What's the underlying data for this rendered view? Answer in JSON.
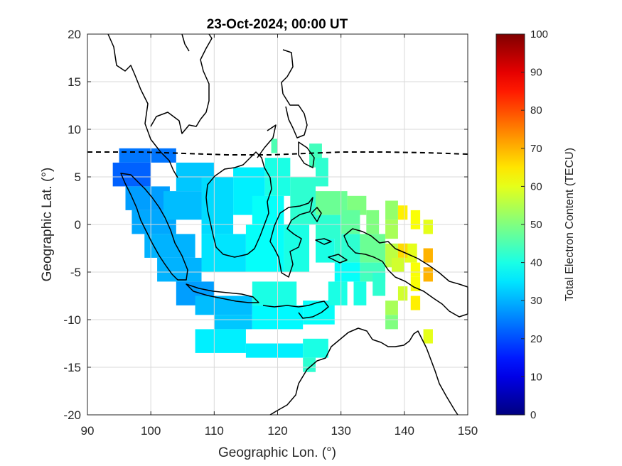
{
  "chart_data": {
    "type": "heatmap",
    "title": "23-Oct-2024; 00:00 UT",
    "xlabel": "Geographic Lon. (°)",
    "ylabel": "Geographic Lat. (°)",
    "xlim": [
      90,
      150
    ],
    "ylim": [
      -20,
      20
    ],
    "xticks": [
      90,
      100,
      110,
      120,
      130,
      140,
      150
    ],
    "yticks": [
      -20,
      -15,
      -10,
      -5,
      0,
      5,
      10,
      15,
      20
    ],
    "grid": true,
    "colorbar": {
      "label": "Total Electron Content (TECU)",
      "colormap": "jet",
      "range": [
        0,
        100
      ],
      "ticks": [
        0,
        10,
        20,
        30,
        40,
        50,
        60,
        70,
        80,
        90,
        100
      ]
    },
    "tec_cells": [
      {
        "lon_min": 95,
        "lon_max": 104,
        "lat_min": 6.5,
        "lat_max": 8.0,
        "tec": 24
      },
      {
        "lon_min": 94,
        "lon_max": 100,
        "lat_min": 4.0,
        "lat_max": 6.5,
        "tec": 22
      },
      {
        "lon_min": 96,
        "lon_max": 103,
        "lat_min": 1.5,
        "lat_max": 4.0,
        "tec": 28
      },
      {
        "lon_min": 97,
        "lon_max": 104,
        "lat_min": -1.0,
        "lat_max": 1.5,
        "tec": 29
      },
      {
        "lon_min": 99,
        "lon_max": 107,
        "lat_min": -3.5,
        "lat_max": -1.0,
        "tec": 30
      },
      {
        "lon_min": 101,
        "lon_max": 108,
        "lat_min": -6.0,
        "lat_max": -3.5,
        "tec": 30
      },
      {
        "lon_min": 104,
        "lon_max": 110,
        "lat_min": -8.5,
        "lat_max": -6.0,
        "tec": 28
      },
      {
        "lon_min": 107,
        "lon_max": 116,
        "lat_min": -9.5,
        "lat_max": -7.5,
        "tec": 31
      },
      {
        "lon_min": 104,
        "lon_max": 110,
        "lat_min": 3.5,
        "lat_max": 6.5,
        "tec": 32
      },
      {
        "lon_min": 102,
        "lon_max": 108,
        "lat_min": 0.5,
        "lat_max": 3.5,
        "tec": 31
      },
      {
        "lon_min": 108,
        "lon_max": 113,
        "lat_min": -1.0,
        "lat_max": 5.0,
        "tec": 34
      },
      {
        "lon_min": 113,
        "lon_max": 118,
        "lat_min": 1.0,
        "lat_max": 6.0,
        "tec": 36
      },
      {
        "lon_min": 118,
        "lon_max": 122,
        "lat_min": 3.0,
        "lat_max": 7.0,
        "tec": 40
      },
      {
        "lon_min": 108,
        "lon_max": 115,
        "lat_min": -5.0,
        "lat_max": -1.0,
        "tec": 35
      },
      {
        "lon_min": 115,
        "lon_max": 121,
        "lat_min": -5.0,
        "lat_max": 0.0,
        "tec": 38
      },
      {
        "lon_min": 116,
        "lon_max": 121,
        "lat_min": 0.0,
        "lat_max": 3.0,
        "tec": 38
      },
      {
        "lon_min": 121,
        "lon_max": 125,
        "lat_min": -5.0,
        "lat_max": 0.0,
        "tec": 40
      },
      {
        "lon_min": 122,
        "lon_max": 126,
        "lat_min": 0.0,
        "lat_max": 5.0,
        "tec": 42
      },
      {
        "lon_min": 119,
        "lon_max": 120,
        "lat_min": 7.5,
        "lat_max": 9.0,
        "tec": 45
      },
      {
        "lon_min": 125,
        "lon_max": 127,
        "lat_min": 6.0,
        "lat_max": 8.5,
        "tec": 44
      },
      {
        "lon_min": 126,
        "lon_max": 128,
        "lat_min": 4.0,
        "lat_max": 7.0,
        "tec": 42
      },
      {
        "lon_min": 116,
        "lon_max": 123,
        "lat_min": -8.5,
        "lat_max": -6.0,
        "tec": 40
      },
      {
        "lon_min": 110,
        "lon_max": 116,
        "lat_min": -11.0,
        "lat_max": -9.5,
        "tec": 32
      },
      {
        "lon_min": 116,
        "lon_max": 124,
        "lat_min": -11.0,
        "lat_max": -8.5,
        "tec": 37
      },
      {
        "lon_min": 124,
        "lon_max": 129,
        "lat_min": -10.5,
        "lat_max": -8.0,
        "tec": 38
      },
      {
        "lon_min": 107,
        "lon_max": 115,
        "lat_min": -13.5,
        "lat_max": -11.0,
        "tec": 36
      },
      {
        "lon_min": 115,
        "lon_max": 124,
        "lat_min": -14.0,
        "lat_max": -12.5,
        "tec": 36
      },
      {
        "lon_min": 124,
        "lon_max": 128,
        "lat_min": -14.0,
        "lat_max": -12.0,
        "tec": 40
      },
      {
        "lon_min": 124,
        "lon_max": 126,
        "lat_min": -15.5,
        "lat_max": -14.0,
        "tec": 42
      },
      {
        "lon_min": 126,
        "lon_max": 131,
        "lat_min": 1.0,
        "lat_max": 3.5,
        "tec": 48
      },
      {
        "lon_min": 131,
        "lon_max": 134,
        "lat_min": 1.0,
        "lat_max": 3.0,
        "tec": 50
      },
      {
        "lon_min": 126,
        "lon_max": 130,
        "lat_min": -1.5,
        "lat_max": 1.0,
        "tec": 42
      },
      {
        "lon_min": 130,
        "lon_max": 133,
        "lat_min": -1.0,
        "lat_max": 1.5,
        "tec": 47
      },
      {
        "lon_min": 126,
        "lon_max": 129,
        "lat_min": -4.0,
        "lat_max": -1.5,
        "tec": 40
      },
      {
        "lon_min": 129,
        "lon_max": 133,
        "lat_min": -4.0,
        "lat_max": -1.0,
        "tec": 42
      },
      {
        "lon_min": 133,
        "lon_max": 137,
        "lat_min": -4.0,
        "lat_max": -1.0,
        "tec": 48
      },
      {
        "lon_min": 129,
        "lon_max": 133,
        "lat_min": -6.0,
        "lat_max": -4.0,
        "tec": 38
      },
      {
        "lon_min": 133,
        "lon_max": 137,
        "lat_min": -6.0,
        "lat_max": -4.0,
        "tec": 44
      },
      {
        "lon_min": 137,
        "lon_max": 139,
        "lat_min": -4.5,
        "lat_max": -2.0,
        "tec": 56
      },
      {
        "lon_min": 140,
        "lon_max": 142,
        "lat_min": -4.0,
        "lat_max": -2.0,
        "tec": 60
      },
      {
        "lon_min": 128,
        "lon_max": 131,
        "lat_min": -8.5,
        "lat_max": -6.0,
        "tec": 40
      },
      {
        "lon_min": 132,
        "lon_max": 134,
        "lat_min": -8.5,
        "lat_max": -6.0,
        "tec": 40
      },
      {
        "lon_min": 135,
        "lon_max": 137,
        "lat_min": -7.5,
        "lat_max": -5.0,
        "tec": 42
      },
      {
        "lon_min": 137,
        "lon_max": 139,
        "lat_min": -1.5,
        "lat_max": 0.5,
        "tec": 54
      },
      {
        "lon_min": 134,
        "lon_max": 136,
        "lat_min": -1.0,
        "lat_max": 1.5,
        "tec": 50
      },
      {
        "lon_min": 137,
        "lon_max": 139,
        "lat_min": 0.5,
        "lat_max": 2.5,
        "tec": 52
      },
      {
        "lon_min": 139,
        "lon_max": 140.5,
        "lat_min": 0.5,
        "lat_max": 2.0,
        "tec": 64
      },
      {
        "lon_min": 141,
        "lon_max": 142.5,
        "lat_min": -0.5,
        "lat_max": 1.5,
        "tec": 62
      },
      {
        "lon_min": 143,
        "lon_max": 144.5,
        "lat_min": -1.0,
        "lat_max": 0.5,
        "tec": 60
      },
      {
        "lon_min": 139,
        "lon_max": 140.5,
        "lat_min": -3.5,
        "lat_max": -2.0,
        "tec": 66
      },
      {
        "lon_min": 143,
        "lon_max": 144.5,
        "lat_min": -4.0,
        "lat_max": -2.5,
        "tec": 70
      },
      {
        "lon_min": 138,
        "lon_max": 140,
        "lat_min": -5.0,
        "lat_max": -3.5,
        "tec": 58
      },
      {
        "lon_min": 141,
        "lon_max": 142.5,
        "lat_min": -5.5,
        "lat_max": -4.0,
        "tec": 62
      },
      {
        "lon_min": 143,
        "lon_max": 144.5,
        "lat_min": -6.0,
        "lat_max": -4.5,
        "tec": 70
      },
      {
        "lon_min": 141,
        "lon_max": 142.5,
        "lat_min": -7.0,
        "lat_max": -5.5,
        "tec": 62
      },
      {
        "lon_min": 139,
        "lon_max": 140.5,
        "lat_min": -8.0,
        "lat_max": -6.5,
        "tec": 58
      },
      {
        "lon_min": 141,
        "lon_max": 142.5,
        "lat_min": -9.0,
        "lat_max": -7.5,
        "tec": 64
      },
      {
        "lon_min": 137,
        "lon_max": 139,
        "lat_min": -9.5,
        "lat_max": -8.0,
        "tec": 54
      },
      {
        "lon_min": 137,
        "lon_max": 139,
        "lat_min": -11.0,
        "lat_max": -9.5,
        "tec": 50
      },
      {
        "lon_min": 143,
        "lon_max": 144.5,
        "lat_min": -12.5,
        "lat_max": -11.0,
        "tec": 60
      }
    ]
  }
}
